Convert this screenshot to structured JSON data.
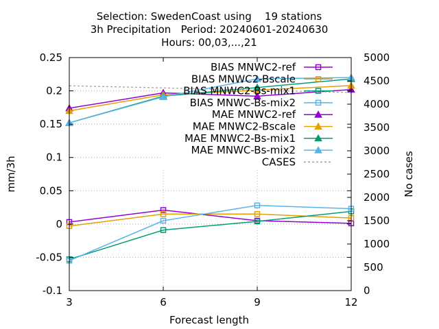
{
  "chart_data": {
    "type": "line",
    "title_lines": [
      "Selection: SwedenCoast using    19 stations",
      "3h Precipitation   Period: 20240601-20240630",
      "Hours: 00,03,...,21"
    ],
    "xlabel": "Forecast length",
    "ylabel": "mm/3h",
    "y2label": "No cases",
    "x": [
      3,
      6,
      9,
      12
    ],
    "xlim": [
      3,
      12
    ],
    "ylim": [
      -0.1,
      0.25
    ],
    "y2lim": [
      0,
      5000
    ],
    "x_ticks": [
      "3",
      "6",
      "9",
      "12"
    ],
    "y_ticks": [
      "-0.1",
      "-0.05",
      "0",
      "0.05",
      "0.1",
      "0.15",
      "0.2",
      "0.25"
    ],
    "y2_ticks": [
      "0",
      "500",
      "1000",
      "1500",
      "2000",
      "2500",
      "3000",
      "3500",
      "4000",
      "4500",
      "5000"
    ],
    "grid": true,
    "legend_position": "top-right",
    "series": [
      {
        "name": "BIAS MNWC2-ref",
        "color": "#9400d3",
        "marker": "open-square",
        "axis": "y",
        "values": [
          0.003,
          0.021,
          0.005,
          0.001
        ]
      },
      {
        "name": "BIAS MNWC2-Bscale",
        "color": "#e69f00",
        "marker": "open-square",
        "axis": "y",
        "values": [
          -0.003,
          0.015,
          0.015,
          0.009
        ]
      },
      {
        "name": "BIAS MNWC2-Bs-mix1",
        "color": "#009e73",
        "marker": "open-square",
        "axis": "y",
        "values": [
          -0.053,
          -0.009,
          0.004,
          0.019
        ]
      },
      {
        "name": "BIAS MNWC-Bs-mix2",
        "color": "#56b4e9",
        "marker": "open-square",
        "axis": "y",
        "values": [
          -0.055,
          0.005,
          0.028,
          0.023
        ]
      },
      {
        "name": "MAE MNWC2-ref",
        "color": "#9400d3",
        "marker": "filled-triangle",
        "axis": "y",
        "values": [
          0.174,
          0.197,
          0.192,
          0.202
        ]
      },
      {
        "name": "MAE MNWC2-Bscale",
        "color": "#e69f00",
        "marker": "filled-triangle",
        "axis": "y",
        "values": [
          0.17,
          0.194,
          0.201,
          0.208
        ]
      },
      {
        "name": "MAE MNWC2-Bs-mix1",
        "color": "#009e73",
        "marker": "filled-triangle",
        "axis": "y",
        "values": [
          0.152,
          0.192,
          0.205,
          0.218
        ]
      },
      {
        "name": "MAE MNWC-Bs-mix2",
        "color": "#56b4e9",
        "marker": "filled-triangle",
        "axis": "y",
        "values": [
          0.152,
          0.191,
          0.218,
          0.22
        ]
      },
      {
        "name": "CASES",
        "color": "#a0a0a0",
        "marker": "none",
        "dashed": true,
        "axis": "y2",
        "values": [
          4395,
          4350,
          4300,
          4250
        ]
      }
    ]
  }
}
